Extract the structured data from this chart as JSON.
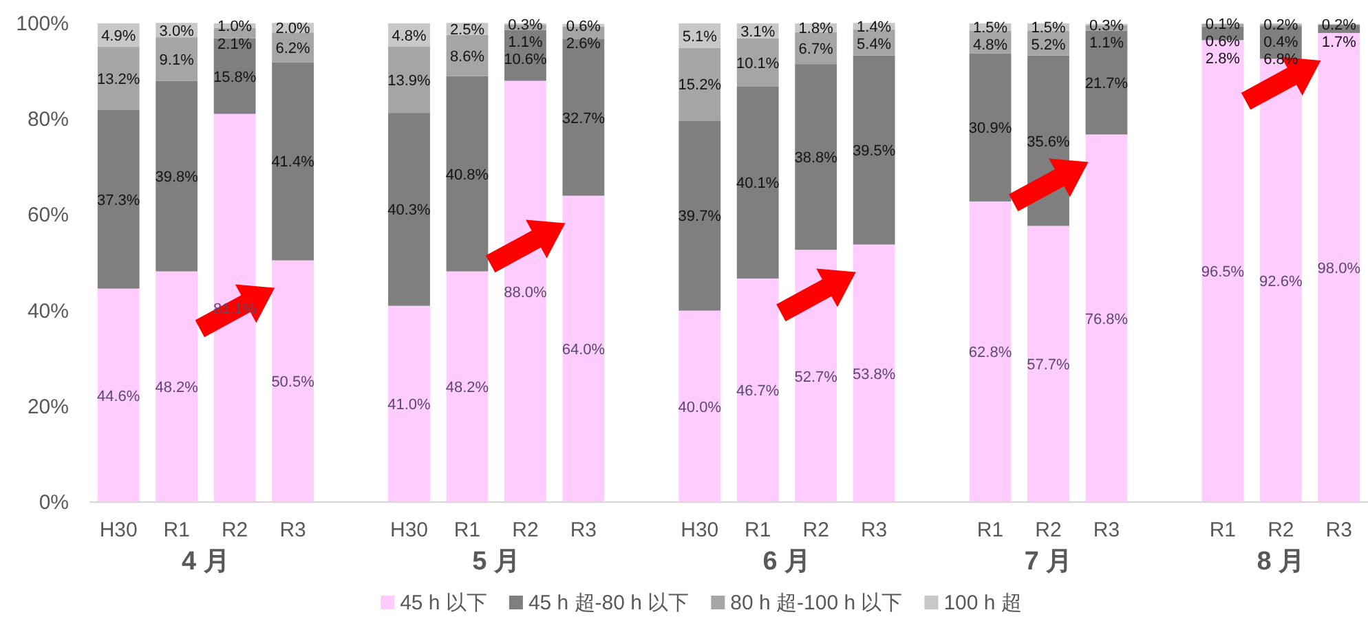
{
  "chart_data": {
    "type": "bar",
    "stacked": true,
    "categories": [
      "H30",
      "R1",
      "R2",
      "R3",
      null,
      "H30",
      "R1",
      "R2",
      "R3",
      null,
      "H30",
      "R1",
      "R2",
      "R3",
      null,
      "R1",
      "R2",
      "R3",
      null,
      "R1",
      "R2",
      "R3"
    ],
    "series": [
      {
        "name": "45 h 以下",
        "color": "#ffccff",
        "values": [
          44.6,
          48.2,
          81.1,
          50.5,
          null,
          41.0,
          48.2,
          88.0,
          64.0,
          null,
          40.0,
          46.7,
          52.7,
          53.8,
          null,
          62.8,
          57.7,
          76.8,
          null,
          96.5,
          92.6,
          98.0
        ],
        "value_labels": [
          "44.6%",
          "48.2%",
          "81.1%",
          "50.5%",
          null,
          "41.0%",
          "48.2%",
          "88.0%",
          "64.0%",
          null,
          "40.0%",
          "46.7%",
          "52.7%",
          "53.8%",
          null,
          "62.8%",
          "57.7%",
          "76.8%",
          null,
          "96.5%",
          "92.6%",
          "98.0%"
        ]
      },
      {
        "name": "45 h 超-80 h 以下",
        "color": "#7f7f7f",
        "values": [
          37.3,
          39.8,
          15.8,
          41.4,
          null,
          40.3,
          40.8,
          10.6,
          32.7,
          null,
          39.7,
          40.1,
          38.8,
          39.5,
          null,
          30.9,
          35.6,
          21.7,
          null,
          2.8,
          6.8,
          1.7
        ],
        "value_labels": [
          "37.3%",
          "39.8%",
          "15.8%",
          "41.4%",
          null,
          "40.3%",
          "40.8%",
          "10.6%",
          "32.7%",
          null,
          "39.7%",
          "40.1%",
          "38.8%",
          "39.5%",
          null,
          "30.9%",
          "35.6%",
          "21.7%",
          null,
          "2.8%",
          "6.8%",
          "1.7%"
        ]
      },
      {
        "name": "80 h 超-100 h 以下",
        "color": "#a5a5a5",
        "values": [
          13.2,
          9.1,
          2.1,
          6.2,
          null,
          13.9,
          8.6,
          1.1,
          2.6,
          null,
          15.2,
          10.1,
          6.7,
          5.4,
          null,
          4.8,
          5.2,
          1.1,
          null,
          0.6,
          0.4,
          null
        ],
        "value_labels": [
          "13.2%",
          "9.1%",
          "2.1%",
          "6.2%",
          null,
          "13.9%",
          "8.6%",
          "1.1%",
          "2.6%",
          null,
          "15.2%",
          "10.1%",
          "6.7%",
          "5.4%",
          null,
          "4.8%",
          "5.2%",
          "1.1%",
          null,
          "0.6%",
          "0.4%",
          null
        ]
      },
      {
        "name": "100 h 超",
        "color": "#c8c8c8",
        "values": [
          4.9,
          3.0,
          1.0,
          2.0,
          null,
          4.8,
          2.5,
          0.3,
          0.6,
          null,
          5.1,
          3.1,
          1.8,
          1.4,
          null,
          1.5,
          1.5,
          0.3,
          null,
          0.1,
          0.2,
          0.2
        ],
        "value_labels": [
          "4.9%",
          "3.0%",
          "1.0%",
          "2.0%",
          null,
          "4.8%",
          "2.5%",
          "0.3%",
          "0.6%",
          null,
          "5.1%",
          "3.1%",
          "1.8%",
          "1.4%",
          null,
          "1.5%",
          "1.5%",
          "0.3%",
          null,
          "0.1%",
          "0.2%",
          "0.2%"
        ]
      }
    ],
    "ylim": [
      0,
      100
    ],
    "yticks": [
      {
        "value": 0,
        "label": "0%"
      },
      {
        "value": 20,
        "label": "20%"
      },
      {
        "value": 40,
        "label": "40%"
      },
      {
        "value": 60,
        "label": "60%"
      },
      {
        "value": 80,
        "label": "80%"
      },
      {
        "value": 100,
        "label": "100%"
      }
    ],
    "annotations": [
      "4 月",
      "5 月",
      "6 月",
      "7 月",
      "8 月"
    ],
    "legend": "bottom",
    "grid": false
  }
}
